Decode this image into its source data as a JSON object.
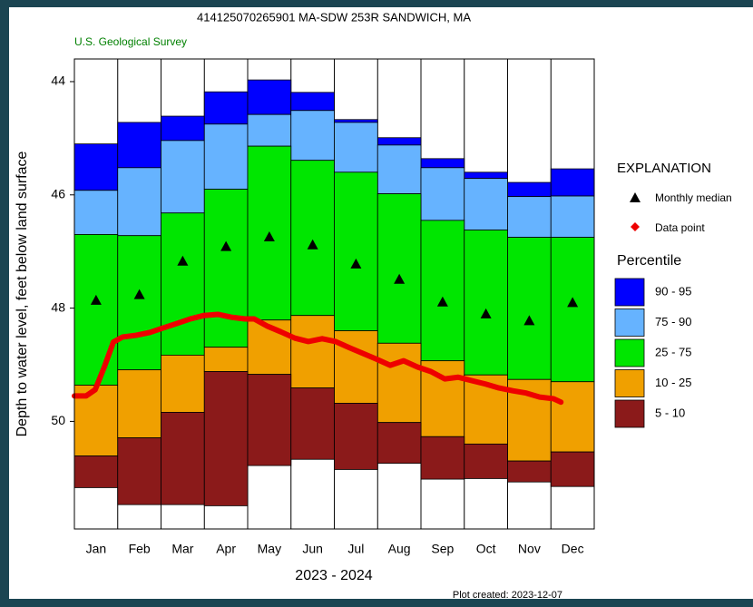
{
  "chart_data": {
    "type": "percentile_bar",
    "title": "414125070265901 MA-SDW  253R SANDWICH, MA",
    "subtitle": "U.S. Geological Survey",
    "ylabel": "Depth to water level, feet below land surface",
    "xlabel": "2023 - 2024",
    "footnote": "Plot created: 2023-12-07",
    "legend_title": "EXPLANATION",
    "percentile_title": "Percentile",
    "categories": [
      "Jan",
      "Feb",
      "Mar",
      "Apr",
      "May",
      "Jun",
      "Jul",
      "Aug",
      "Sep",
      "Oct",
      "Nov",
      "Dec"
    ],
    "ylim": [
      43.6,
      51.9
    ],
    "inverted": true,
    "yticks": [
      44,
      46,
      48,
      50
    ],
    "xlim": [
      0,
      12
    ],
    "bands": [
      {
        "name": "90 - 95",
        "color": "#0000ff",
        "values": [
          45.1,
          44.72,
          44.61,
          44.18,
          43.97,
          44.19,
          44.67,
          44.99,
          45.36,
          45.6,
          45.78,
          45.54
        ]
      },
      {
        "name": "75 - 90",
        "color": "#66b3ff",
        "values": [
          45.92,
          45.52,
          45.04,
          44.75,
          44.58,
          44.51,
          44.72,
          45.12,
          45.52,
          45.71,
          46.03,
          46.02
        ]
      },
      {
        "name": "25 - 75",
        "color": "#00e600",
        "values": [
          46.7,
          46.72,
          46.32,
          45.9,
          45.14,
          45.39,
          45.6,
          45.98,
          46.45,
          46.62,
          46.75,
          46.75
        ]
      },
      {
        "name": "10 - 25",
        "color": "#f0a000",
        "values": [
          49.36,
          49.09,
          48.83,
          48.69,
          48.21,
          48.13,
          48.4,
          48.62,
          48.93,
          49.18,
          49.26,
          49.3
        ]
      },
      {
        "name": "5 - 10",
        "color": "#8b1a1a",
        "values": [
          50.61,
          50.29,
          49.84,
          49.12,
          49.17,
          49.41,
          49.68,
          50.02,
          50.27,
          50.4,
          50.7,
          50.54
        ]
      }
    ],
    "floor": [
      51.17,
      51.47,
      51.47,
      51.49,
      50.78,
      50.67,
      50.85,
      50.74,
      51.02,
      51.01,
      51.07,
      51.15
    ],
    "median": {
      "name": "Monthly median",
      "color": "#000000",
      "values": [
        47.86,
        47.76,
        47.17,
        46.91,
        46.74,
        46.88,
        47.22,
        47.49,
        47.89,
        48.1,
        48.22,
        47.9
      ]
    },
    "data_points": {
      "name": "Data point",
      "color": "#ee0000",
      "x": [
        0,
        0.27,
        0.48,
        0.69,
        0.9,
        1.11,
        1.42,
        1.74,
        2.05,
        2.37,
        2.68,
        2.99,
        3.31,
        3.62,
        3.94,
        4.15,
        4.46,
        4.77,
        5.09,
        5.4,
        5.72,
        6.03,
        6.35,
        6.66,
        6.97,
        7.29,
        7.6,
        7.92,
        8.23,
        8.55,
        8.86,
        9.17,
        9.49,
        9.8,
        10.12,
        10.43,
        10.74,
        11.06,
        11.23
      ],
      "values": [
        49.55,
        49.55,
        49.44,
        49.04,
        48.6,
        48.51,
        48.48,
        48.43,
        48.35,
        48.27,
        48.19,
        48.13,
        48.11,
        48.16,
        48.19,
        48.19,
        48.32,
        48.42,
        48.53,
        48.59,
        48.54,
        48.59,
        48.7,
        48.8,
        48.9,
        49.01,
        48.93,
        49.04,
        49.12,
        49.25,
        49.22,
        49.28,
        49.34,
        49.41,
        49.46,
        49.5,
        49.57,
        49.6,
        49.66
      ]
    }
  }
}
